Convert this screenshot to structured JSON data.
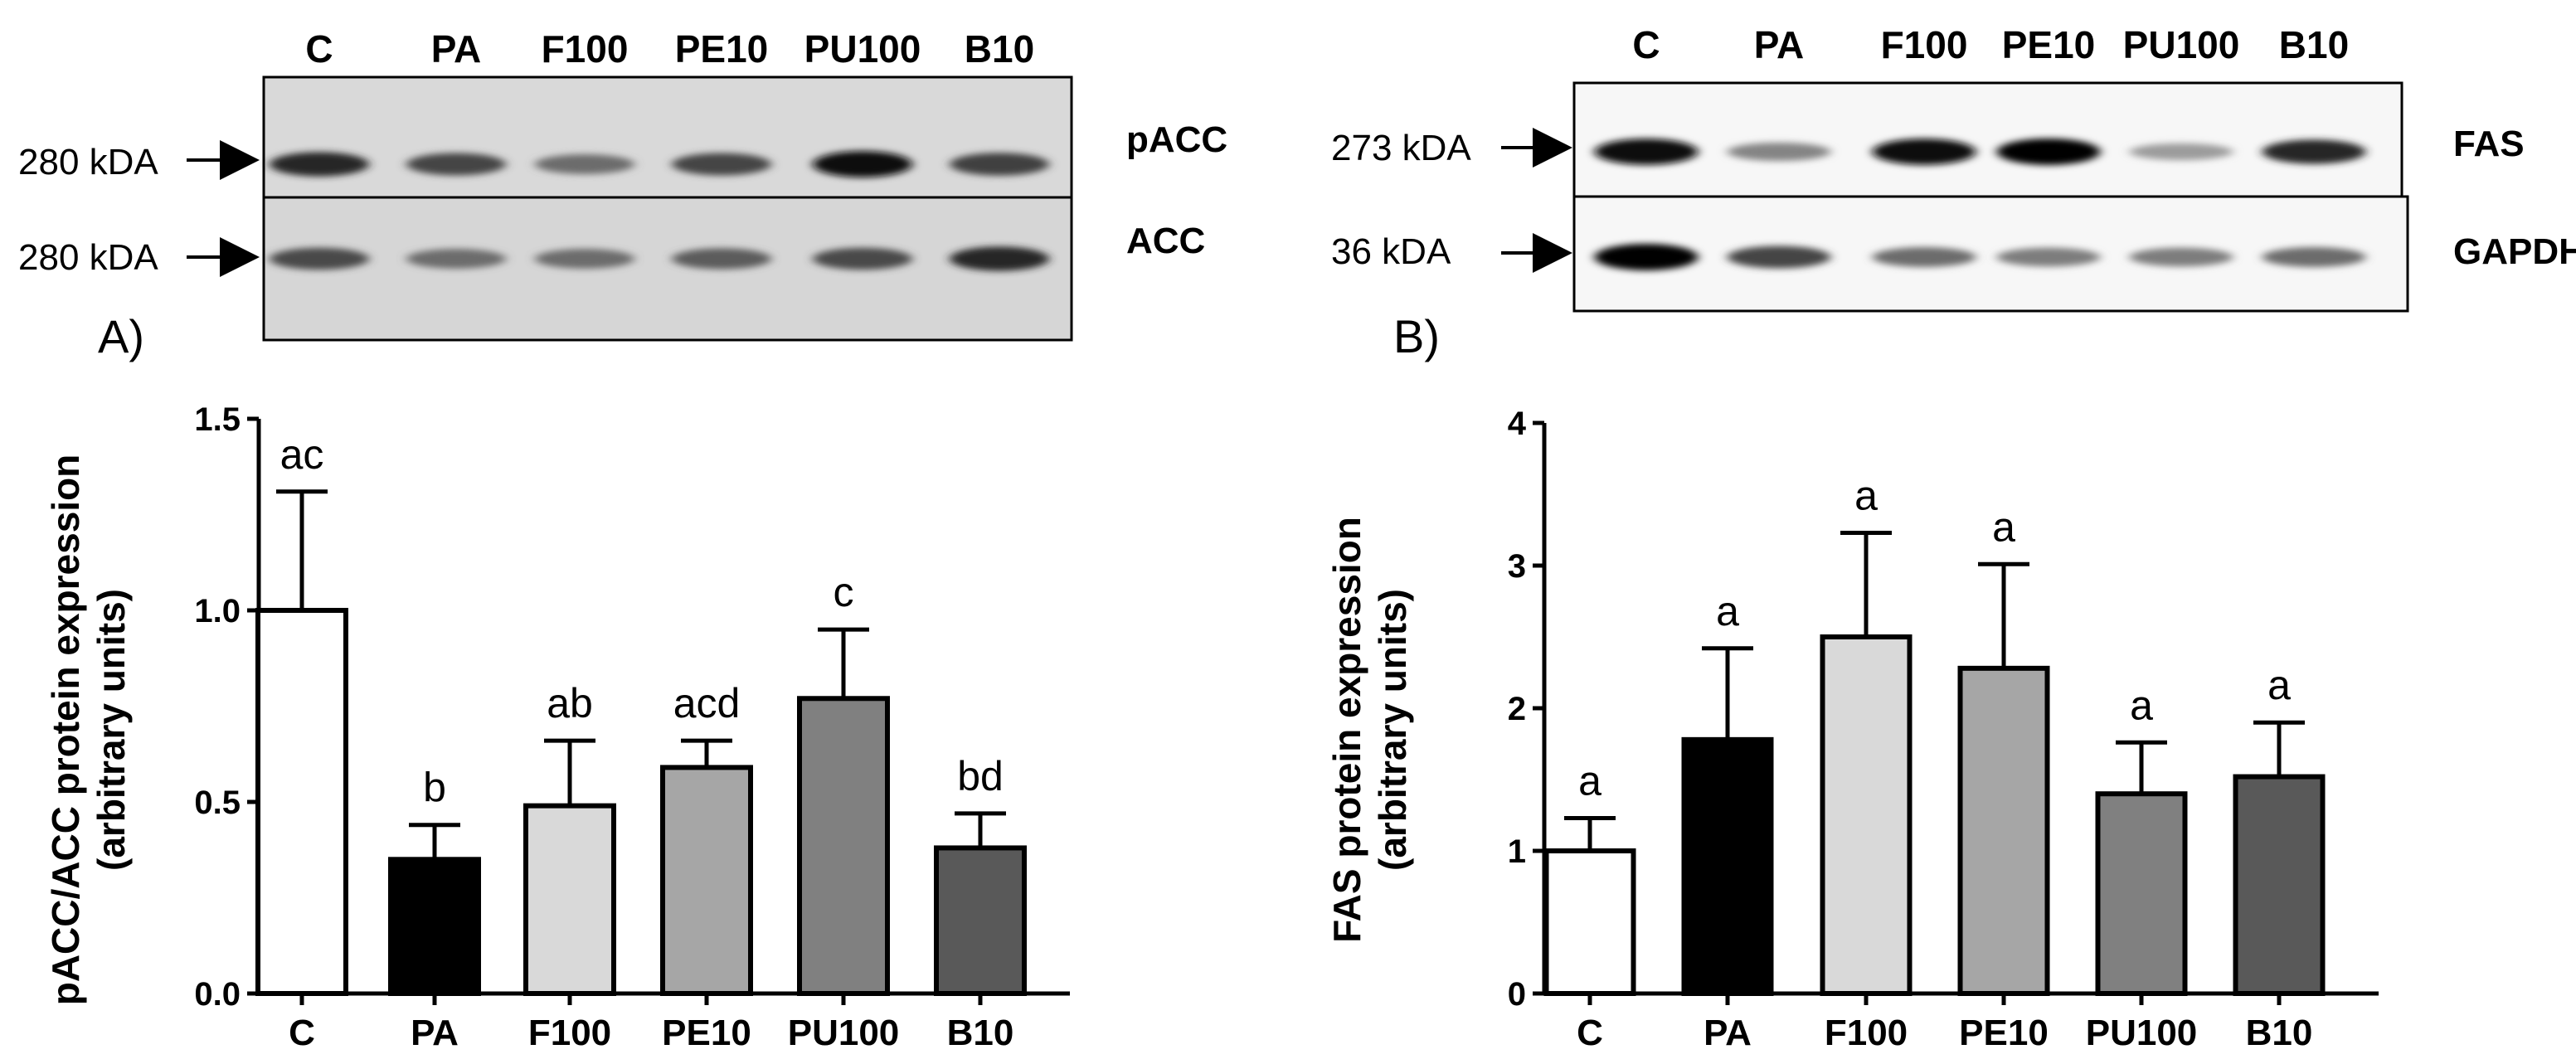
{
  "blots": {
    "left": {
      "lanes": [
        "C",
        "PA",
        "F100",
        "PE10",
        "PU100",
        "B10"
      ],
      "top_label": "pACC",
      "bottom_label": "ACC",
      "top_mw": "280 kDA",
      "bottom_mw": "280 kDA",
      "top_band_intensity": [
        0.85,
        0.72,
        0.55,
        0.72,
        0.98,
        0.75
      ],
      "bottom_band_intensity": [
        0.7,
        0.55,
        0.55,
        0.62,
        0.7,
        0.85
      ]
    },
    "right": {
      "lanes": [
        "C",
        "PA",
        "F100",
        "PE10",
        "PU100",
        "B10"
      ],
      "top_label": "FAS",
      "bottom_label": "GAPDH",
      "top_mw": "273 kDA",
      "bottom_mw": "36 kDA",
      "top_band_intensity": [
        0.98,
        0.45,
        0.98,
        1.0,
        0.35,
        0.85
      ],
      "bottom_band_intensity": [
        1.0,
        0.72,
        0.55,
        0.48,
        0.48,
        0.55
      ]
    }
  },
  "chart_data": [
    {
      "panel": "A)",
      "type": "bar",
      "categories": [
        "C",
        "PA",
        "F100",
        "PE10",
        "PU100",
        "B10"
      ],
      "values": [
        1.0,
        0.35,
        0.49,
        0.59,
        0.77,
        0.38
      ],
      "errors": [
        0.31,
        0.09,
        0.17,
        0.07,
        0.18,
        0.09
      ],
      "labels": [
        "ac",
        "b",
        "ab",
        "acd",
        "c",
        "bd"
      ],
      "colors": [
        "#ffffff",
        "#000000",
        "#d9d9d9",
        "#a6a6a6",
        "#808080",
        "#595959"
      ],
      "ylabel_line1": "pACC/ACC protein expression",
      "ylabel_line2": "(arbitrary units)",
      "ylim": [
        0,
        1.5
      ],
      "yticks": [
        "0.0",
        "0.5",
        "1.0",
        "1.5"
      ],
      "ytick_values": [
        0,
        0.5,
        1.0,
        1.5
      ]
    },
    {
      "panel": "B)",
      "type": "bar",
      "categories": [
        "C",
        "PA",
        "F100",
        "PE10",
        "PU100",
        "B10"
      ],
      "values": [
        1.0,
        1.78,
        2.5,
        2.28,
        1.4,
        1.52
      ],
      "errors": [
        0.23,
        0.64,
        0.73,
        0.73,
        0.36,
        0.38
      ],
      "labels": [
        "a",
        "a",
        "a",
        "a",
        "a",
        "a"
      ],
      "colors": [
        "#ffffff",
        "#000000",
        "#d9d9d9",
        "#a6a6a6",
        "#808080",
        "#595959"
      ],
      "ylabel_line1": "FAS protein expression",
      "ylabel_line2": "(arbitrary units)",
      "ylim": [
        0,
        4
      ],
      "yticks": [
        "0",
        "1",
        "2",
        "3",
        "4"
      ],
      "ytick_values": [
        0,
        1,
        2,
        3,
        4
      ]
    }
  ]
}
